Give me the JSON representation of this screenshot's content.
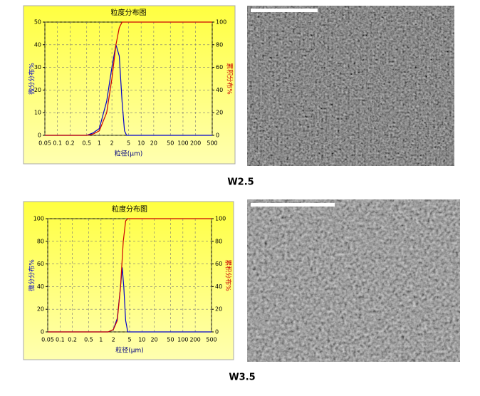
{
  "chart_data": [
    {
      "type": "line",
      "title": "粒度分布图",
      "xlabel": "粒径(μm)",
      "ylabel": "微分分布%",
      "y2label": "累积分布%",
      "caption": "W2.5",
      "log_x": true,
      "grid": true,
      "xlim": [
        0.05,
        500
      ],
      "xticks": [
        0.05,
        0.1,
        0.2,
        0.5,
        1,
        2,
        5,
        10,
        20,
        50,
        100,
        200,
        500
      ],
      "ylim": [
        0,
        50
      ],
      "yticks": [
        0,
        10,
        20,
        30,
        40,
        50
      ],
      "y2lim": [
        0,
        100
      ],
      "y2ticks": [
        0,
        20,
        40,
        60,
        80,
        100
      ],
      "series": [
        {
          "name": "微分分布",
          "color": "#0000cc",
          "x": [
            0.05,
            0.5,
            0.7,
            1,
            1.5,
            2,
            2.5,
            3,
            3.5,
            4,
            4.5,
            500
          ],
          "values": [
            0,
            0,
            1,
            3,
            15,
            30,
            40,
            35,
            15,
            2,
            0,
            0
          ]
        },
        {
          "name": "累积分布",
          "color": "#cc0000",
          "axis": "y2",
          "x": [
            0.05,
            0.5,
            0.7,
            1,
            1.5,
            2,
            2.5,
            3,
            3.5,
            500
          ],
          "values": [
            0,
            0,
            1,
            4,
            20,
            50,
            80,
            95,
            100,
            100
          ]
        }
      ]
    },
    {
      "type": "line",
      "title": "粒度分布图",
      "xlabel": "粒径(μm)",
      "ylabel": "微分分布%",
      "y2label": "累积分布%",
      "caption": "W3.5",
      "log_x": true,
      "grid": true,
      "xlim": [
        0.05,
        500
      ],
      "xticks": [
        0.05,
        0.1,
        0.2,
        0.5,
        1,
        2,
        5,
        10,
        20,
        50,
        100,
        200,
        500
      ],
      "ylim": [
        0,
        100
      ],
      "yticks": [
        0,
        20,
        40,
        60,
        80,
        100
      ],
      "y2lim": [
        0,
        100
      ],
      "y2ticks": [
        0,
        20,
        40,
        60,
        80,
        100
      ],
      "series": [
        {
          "name": "微分分布",
          "color": "#0000cc",
          "x": [
            0.05,
            1.5,
            2,
            2.5,
            3,
            3.3,
            3.6,
            4,
            4.5,
            500
          ],
          "values": [
            0,
            0,
            2,
            12,
            40,
            57,
            40,
            10,
            0,
            0
          ]
        },
        {
          "name": "累积分布",
          "color": "#cc0000",
          "axis": "y2",
          "x": [
            0.05,
            1.5,
            2,
            2.5,
            3,
            3.5,
            4,
            4.5,
            500
          ],
          "values": [
            0,
            0,
            2,
            10,
            40,
            80,
            98,
            100,
            100
          ]
        }
      ]
    }
  ]
}
